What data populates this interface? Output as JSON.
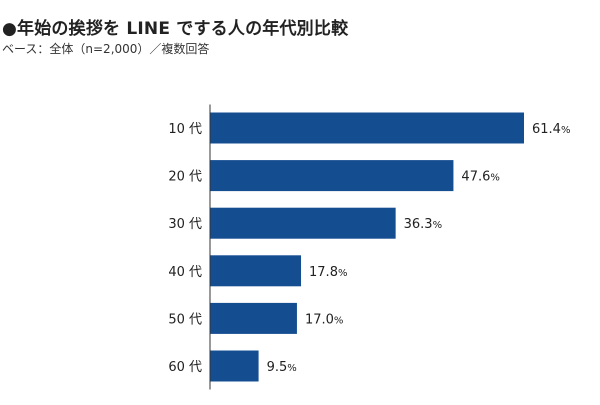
{
  "header": {
    "title": "●年始の挨拶を LINE でする人の年代別比較",
    "subtitle": "ベース：全体（n=2,000）／複数回答"
  },
  "colors": {
    "bar": "#154d91",
    "text": "#222222",
    "axis": "#333333"
  },
  "chart_data": {
    "type": "bar",
    "orientation": "horizontal",
    "categories": [
      "10 代",
      "20 代",
      "30 代",
      "40 代",
      "50 代",
      "60 代"
    ],
    "values": [
      61.4,
      47.6,
      36.3,
      17.8,
      17.0,
      9.5
    ],
    "value_labels": [
      "61.4",
      "47.6",
      "36.3",
      "17.8",
      "17.0",
      "9.5"
    ],
    "unit": "%",
    "xlim": [
      0,
      61.4
    ],
    "grid": false,
    "legend": "none"
  }
}
